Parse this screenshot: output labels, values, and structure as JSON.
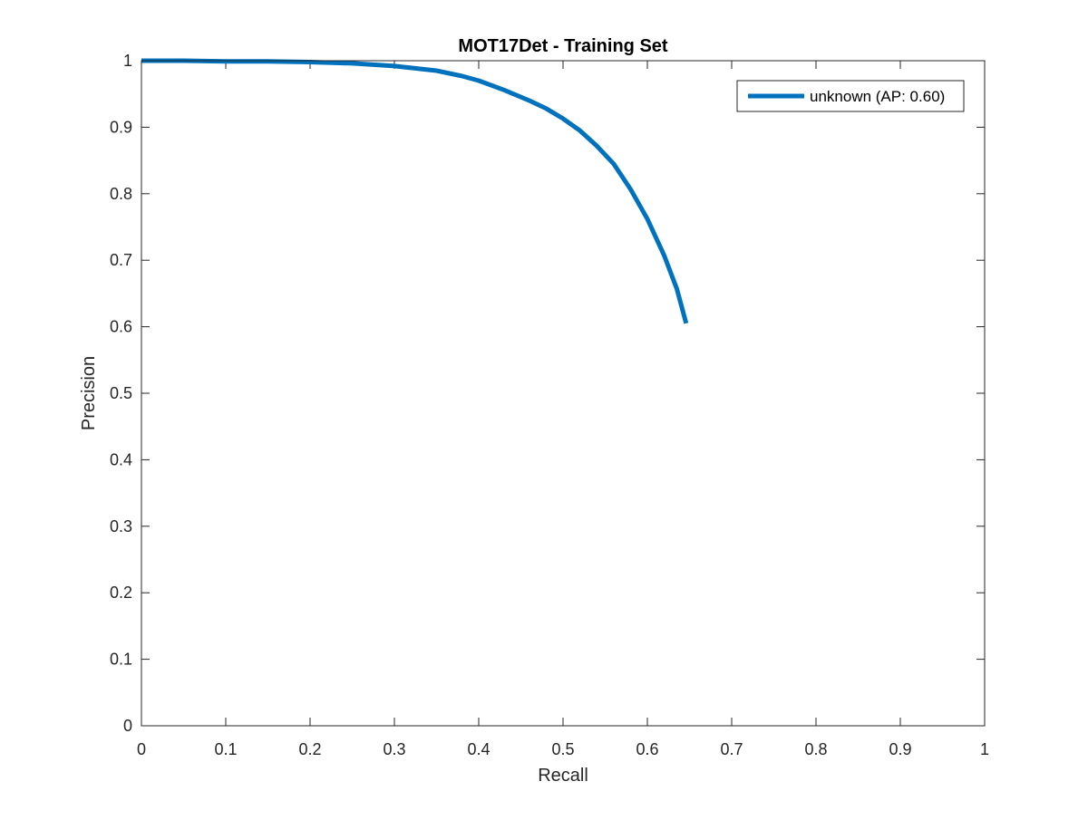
{
  "chart_data": {
    "type": "line",
    "title": "MOT17Det - Training Set",
    "xlabel": "Recall",
    "ylabel": "Precision",
    "xlim": [
      0,
      1
    ],
    "ylim": [
      0,
      1
    ],
    "xticks": [
      0,
      0.1,
      0.2,
      0.3,
      0.4,
      0.5,
      0.6,
      0.7,
      0.8,
      0.9,
      1
    ],
    "yticks": [
      0,
      0.1,
      0.2,
      0.3,
      0.4,
      0.5,
      0.6,
      0.7,
      0.8,
      0.9,
      1
    ],
    "xtick_labels": [
      "0",
      "0.1",
      "0.2",
      "0.3",
      "0.4",
      "0.5",
      "0.6",
      "0.7",
      "0.8",
      "0.9",
      "1"
    ],
    "ytick_labels": [
      "0",
      "0.1",
      "0.2",
      "0.3",
      "0.4",
      "0.5",
      "0.6",
      "0.7",
      "0.8",
      "0.9",
      "1"
    ],
    "grid": false,
    "legend_position": "top-right",
    "series": [
      {
        "name": "unknown (AP: 0.60)",
        "color": "#0072BD",
        "x": [
          0,
          0.05,
          0.1,
          0.15,
          0.2,
          0.25,
          0.3,
          0.35,
          0.38,
          0.4,
          0.43,
          0.46,
          0.48,
          0.5,
          0.52,
          0.54,
          0.56,
          0.58,
          0.6,
          0.62,
          0.635,
          0.646
        ],
        "y": [
          1.0,
          1.0,
          0.999,
          0.999,
          0.998,
          0.996,
          0.992,
          0.985,
          0.977,
          0.97,
          0.956,
          0.94,
          0.928,
          0.913,
          0.895,
          0.872,
          0.845,
          0.807,
          0.762,
          0.707,
          0.657,
          0.605
        ]
      }
    ]
  }
}
